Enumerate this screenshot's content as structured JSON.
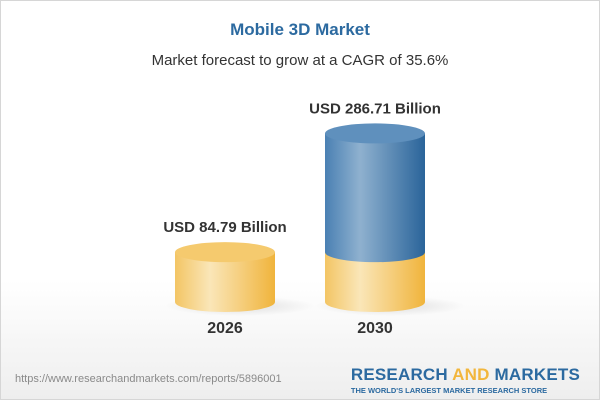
{
  "title": "Mobile 3D Market",
  "subtitle": "Market forecast to grow at a CAGR of 35.6%",
  "chart_data": {
    "type": "bar",
    "style": "3d-cylinder",
    "categories": [
      "2026",
      "2030"
    ],
    "values": [
      84.79,
      286.71
    ],
    "data_labels": [
      "USD 84.79 Billion",
      "USD 286.71 Billion"
    ],
    "unit": "USD Billion",
    "colors": {
      "base": "#f2c35a",
      "growth": "#3f77aa"
    }
  },
  "footer": {
    "url": "https://www.researchandmarkets.com/reports/5896001",
    "logo_part1": "RESEARCH ",
    "logo_part2": "AND",
    "logo_part3": " MARKETS",
    "tagline": "THE WORLD'S LARGEST MARKET RESEARCH STORE"
  }
}
